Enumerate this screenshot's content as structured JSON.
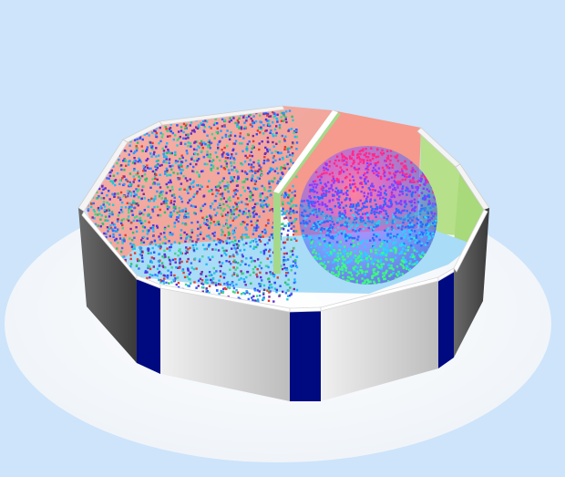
{
  "scene": {
    "background_color": "#cde4fb",
    "floor_color": "#ffffff",
    "wall_colors": {
      "light_panel": "#d6d6d6",
      "dark_panel": "#4a4a4a",
      "seam": "#000a80",
      "rim_top": "#f4f4f4"
    },
    "inner_floor_color": "#a9dcf6",
    "back_wall_left_color": "#f2a8a0",
    "back_wall_right_color": "#f59a8c",
    "side_wall_right_color": "#a8d97a",
    "divider_color": "#a6d88a",
    "sphere_colors": [
      "#ff2a8a",
      "#8a3cff",
      "#2a6cff",
      "#2ad0ff",
      "#3aff7a"
    ],
    "particle_colors": [
      "#2b4cff",
      "#5b2cd6",
      "#2a9cff",
      "#26c9d6",
      "#2fbf6a",
      "#7a2c9c",
      "#e0402c",
      "#3a6cff",
      "#1fb8ff",
      "#44d48a"
    ],
    "particle_count": 2600,
    "sphere_particle_count": 1400
  }
}
